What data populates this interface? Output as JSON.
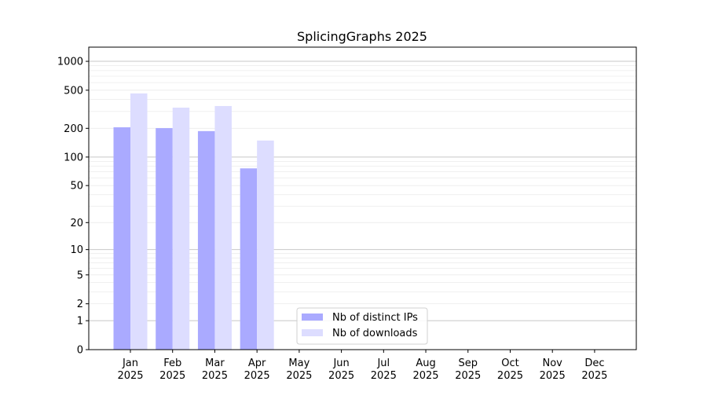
{
  "chart_data": {
    "type": "bar",
    "title": "SplicingGraphs 2025",
    "xlabel": "",
    "ylabel": "",
    "yscale": "symlog",
    "ylim": [
      0,
      1300
    ],
    "yticks": [
      0,
      1,
      2,
      5,
      10,
      20,
      50,
      100,
      200,
      500,
      1000
    ],
    "grid": true,
    "legend_position": "lower-center",
    "categories": [
      "Jan\n2025",
      "Feb\n2025",
      "Mar\n2025",
      "Apr\n2025",
      "May\n2025",
      "Jun\n2025",
      "Jul\n2025",
      "Aug\n2025",
      "Sep\n2025",
      "Oct\n2025",
      "Nov\n2025",
      "Dec\n2025"
    ],
    "series": [
      {
        "name": "Nb of distinct IPs",
        "color": "#aaaaff",
        "values": [
          205,
          201,
          187,
          76,
          null,
          null,
          null,
          null,
          null,
          null,
          null,
          null
        ]
      },
      {
        "name": "Nb of downloads",
        "color": "#ddddff",
        "values": [
          463,
          329,
          342,
          149,
          null,
          null,
          null,
          null,
          null,
          null,
          null,
          null
        ]
      }
    ]
  }
}
